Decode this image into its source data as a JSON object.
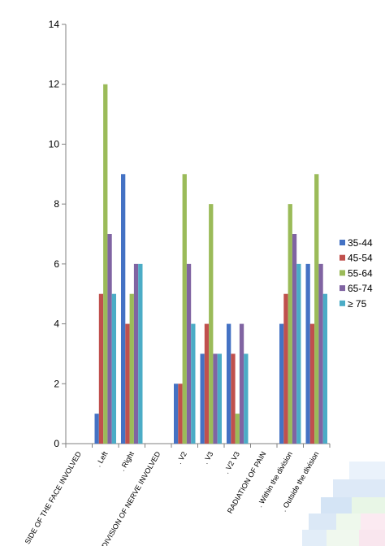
{
  "chart_data": {
    "type": "bar",
    "categories": [
      "SIDE OF THE FACE INVOLVED",
      ". Left",
      ". Right",
      "DIVISION OF NERVE INVOLVED",
      ". V2",
      ". V3",
      ". V2 V3",
      "RADIATION OF PAIN",
      ". Within the division",
      ". Outside the division"
    ],
    "series": [
      {
        "name": "35-44",
        "color": "#4472C4",
        "values": [
          null,
          1,
          9,
          null,
          2,
          3,
          4,
          null,
          4,
          6
        ]
      },
      {
        "name": "45-54",
        "color": "#C0504D",
        "values": [
          null,
          5,
          4,
          null,
          2,
          4,
          3,
          null,
          5,
          4
        ]
      },
      {
        "name": "55-64",
        "color": "#9BBB59",
        "values": [
          null,
          12,
          5,
          null,
          9,
          8,
          1,
          null,
          8,
          9
        ]
      },
      {
        "name": "65-74",
        "color": "#8064A2",
        "values": [
          null,
          7,
          6,
          null,
          6,
          3,
          4,
          null,
          7,
          6
        ]
      },
      {
        "name": "≥ 75",
        "color": "#4BACC6",
        "values": [
          null,
          5,
          6,
          null,
          4,
          3,
          3,
          null,
          6,
          5
        ]
      }
    ],
    "ylim": [
      0,
      14
    ],
    "yticks": [
      0,
      2,
      4,
      6,
      8,
      10,
      12,
      14
    ],
    "grid": false,
    "legend_position": "right"
  }
}
